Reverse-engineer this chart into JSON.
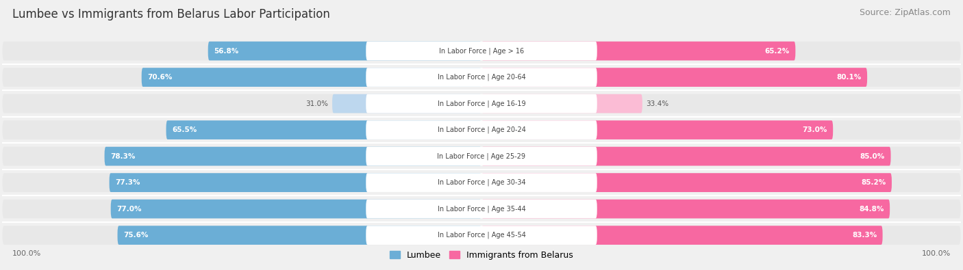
{
  "title": "Lumbee vs Immigrants from Belarus Labor Participation",
  "source": "Source: ZipAtlas.com",
  "categories": [
    "In Labor Force | Age > 16",
    "In Labor Force | Age 20-64",
    "In Labor Force | Age 16-19",
    "In Labor Force | Age 20-24",
    "In Labor Force | Age 25-29",
    "In Labor Force | Age 30-34",
    "In Labor Force | Age 35-44",
    "In Labor Force | Age 45-54"
  ],
  "lumbee_values": [
    56.8,
    70.6,
    31.0,
    65.5,
    78.3,
    77.3,
    77.0,
    75.6
  ],
  "belarus_values": [
    65.2,
    80.1,
    33.4,
    73.0,
    85.0,
    85.2,
    84.8,
    83.3
  ],
  "lumbee_color": "#6BAED6",
  "belarus_color": "#F768A1",
  "lumbee_light_color": "#BDD7EE",
  "belarus_light_color": "#FBBCD5",
  "background_color": "#F0F0F0",
  "row_bg_color": "#E8E8E8",
  "title_fontsize": 12,
  "source_fontsize": 9,
  "value_fontsize": 7.5,
  "cat_fontsize": 7,
  "legend_fontsize": 9,
  "max_value": 100.0,
  "footer": "100.0%",
  "light_threshold": 45
}
